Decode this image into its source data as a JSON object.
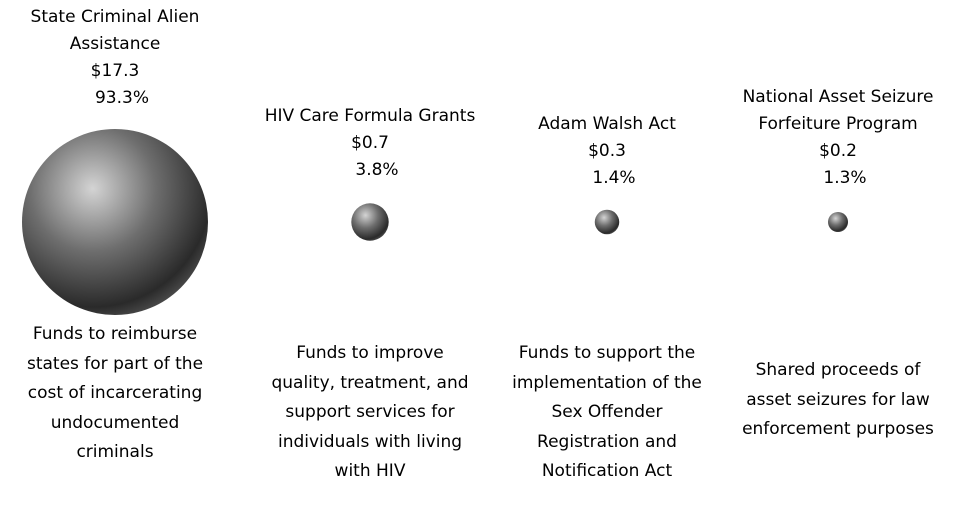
{
  "chart_data": {
    "type": "bubble",
    "categories": [
      "State Criminal Alien Assistance",
      "HIV Care Formula Grants",
      "Adam Walsh Act",
      "National Asset Seizure Forfeiture Program"
    ],
    "values": [
      17.3,
      0.7,
      0.3,
      0.2
    ],
    "value_labels": [
      "$17.3",
      "$0.7",
      "$0.3",
      "$0.2"
    ],
    "shares": [
      93.3,
      3.8,
      1.4,
      1.3
    ],
    "share_labels": [
      "93.3%",
      "3.8%",
      "1.4%",
      "1.3%"
    ],
    "descriptions": [
      "Funds to reimburse states for part of the cost of incarcerating undocumented criminals",
      "Funds to improve quality, treatment, and support services for individuals with living with HIV",
      "Funds to support the implementation of the Sex Offender Registration and Notification Act",
      "Shared proceeds of asset seizures for law enforcement purposes"
    ],
    "color": "#6e6e6e"
  }
}
